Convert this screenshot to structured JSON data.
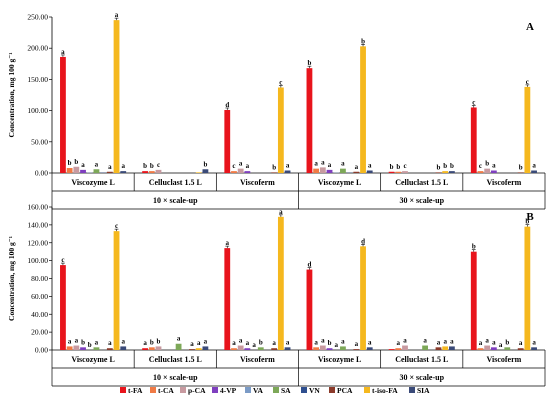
{
  "chart_data": [
    {
      "type": "bar",
      "panel_label": "A",
      "ylabel": "Concentration, mg 100 g⁻¹",
      "ylim": [
        0,
        250
      ],
      "yticks": [
        "0.00",
        "50.00",
        "100.00",
        "150.00",
        "200.00",
        "250.00"
      ],
      "tick_values": [
        0,
        50,
        100,
        150,
        200,
        250
      ],
      "categories": [
        "Viscozyme L",
        "Celluclast 1.5 L",
        "Viscoferm",
        "Viscozyme L",
        "Celluclast 1.5 L",
        "Viscoferm"
      ],
      "groups": [
        "10 × scale-up",
        "30 × scale-up"
      ],
      "series": [
        {
          "name": "t-FA",
          "values": [
            186,
            3,
            101,
            168,
            2,
            105
          ],
          "letters": [
            "a",
            "b",
            "d",
            "b",
            "b",
            "c"
          ]
        },
        {
          "name": "t-CA",
          "values": [
            8,
            3,
            3,
            7,
            2,
            3
          ],
          "letters": [
            "b",
            "b",
            "c",
            "a",
            "b",
            "c"
          ]
        },
        {
          "name": "p-CA",
          "values": [
            10,
            5,
            7,
            9,
            3,
            7
          ],
          "letters": [
            "b",
            "c",
            "a",
            "a",
            "c",
            "b"
          ]
        },
        {
          "name": "4-VP",
          "values": [
            5,
            0,
            3,
            5,
            0,
            4
          ],
          "letters": [
            "a",
            "",
            "a",
            "a",
            "",
            "a"
          ]
        },
        {
          "name": "VA",
          "values": [
            0.5,
            0,
            0,
            0.5,
            0,
            0
          ],
          "letters": [
            "",
            "",
            "",
            "",
            "",
            ""
          ]
        },
        {
          "name": "SA",
          "values": [
            6,
            0,
            0,
            7,
            0,
            0
          ],
          "letters": [
            "a",
            "",
            "",
            "a",
            "",
            ""
          ]
        },
        {
          "name": "VN",
          "values": [
            0.5,
            0,
            0,
            0.5,
            0,
            0
          ],
          "letters": [
            "",
            "",
            "",
            "",
            "",
            ""
          ]
        },
        {
          "name": "PCA",
          "values": [
            2,
            0,
            1,
            2,
            1,
            1
          ],
          "letters": [
            "a",
            "",
            "b",
            "a",
            "b",
            "b"
          ]
        },
        {
          "name": "t-iso-FA",
          "values": [
            245,
            1,
            137,
            203,
            3,
            138
          ],
          "letters": [
            "a",
            "",
            "c",
            "b",
            "b",
            "c"
          ]
        },
        {
          "name": "SIA",
          "values": [
            3,
            6,
            4,
            4,
            3,
            4
          ],
          "letters": [
            "a",
            "b",
            "a",
            "a",
            "b",
            "a"
          ]
        }
      ]
    },
    {
      "type": "bar",
      "panel_label": "B",
      "ylabel": "Concentration, mg 100 g⁻¹",
      "ylim": [
        0,
        160
      ],
      "yticks": [
        "0.00",
        "20.00",
        "40.00",
        "60.00",
        "80.00",
        "100.00",
        "120.00",
        "140.00",
        "160.00"
      ],
      "tick_values": [
        0,
        20,
        40,
        60,
        80,
        100,
        120,
        140,
        160
      ],
      "categories": [
        "Viscozyme L",
        "Celluclast 1.5 L",
        "Viscoferm",
        "Viscozyme L",
        "Celluclast 1.5 L",
        "Viscoferm"
      ],
      "groups": [
        "10 × scale-up",
        "30 × scale-up"
      ],
      "series": [
        {
          "name": "t-FA",
          "values": [
            95,
            2,
            114,
            90,
            1,
            110
          ],
          "letters": [
            "c",
            "a",
            "a",
            "d",
            "",
            "b"
          ]
        },
        {
          "name": "t-CA",
          "values": [
            4,
            3,
            2,
            3,
            2,
            2
          ],
          "letters": [
            "a",
            "b",
            "a",
            "a",
            "a",
            "a"
          ]
        },
        {
          "name": "p-CA",
          "values": [
            5,
            4,
            5,
            5,
            5,
            5
          ],
          "letters": [
            "a",
            "b",
            "a",
            "a",
            "a",
            "a"
          ]
        },
        {
          "name": "4-VP",
          "values": [
            3,
            0,
            2,
            2,
            0,
            3
          ],
          "letters": [
            "b",
            "",
            "a",
            "b",
            "",
            "a"
          ]
        },
        {
          "name": "VA",
          "values": [
            0,
            0,
            0,
            0,
            0,
            0
          ],
          "letters": [
            "b",
            "",
            "a",
            "a",
            "",
            "a"
          ]
        },
        {
          "name": "SA",
          "values": [
            3,
            7,
            3,
            4,
            5,
            3
          ],
          "letters": [
            "a",
            "a",
            "b",
            "a",
            "a",
            "b"
          ]
        },
        {
          "name": "VN",
          "values": [
            0,
            0,
            0,
            0,
            0,
            0
          ],
          "letters": [
            "",
            "",
            "",
            "",
            "",
            ""
          ]
        },
        {
          "name": "PCA",
          "values": [
            2,
            1,
            2,
            1,
            3,
            2
          ],
          "letters": [
            "a",
            "a",
            "a",
            "a",
            "a",
            "a"
          ]
        },
        {
          "name": "t-iso-FA",
          "values": [
            133,
            2,
            149,
            116,
            4,
            138
          ],
          "letters": [
            "c",
            "a",
            "a",
            "d",
            "a",
            "b"
          ]
        },
        {
          "name": "SIA",
          "values": [
            4,
            4,
            3,
            3,
            4,
            3
          ],
          "letters": [
            "a",
            "a",
            "a",
            "a",
            "a",
            "a"
          ]
        }
      ]
    }
  ],
  "legend": {
    "placement": "bottom",
    "colors": [
      "#e8141c",
      "#f07a45",
      "#c89aa0",
      "#7f3fbf",
      "#7b9bc6",
      "#7da858",
      "#2f4f8f",
      "#8b3a2a",
      "#f5b81e",
      "#3a4a78"
    ]
  }
}
